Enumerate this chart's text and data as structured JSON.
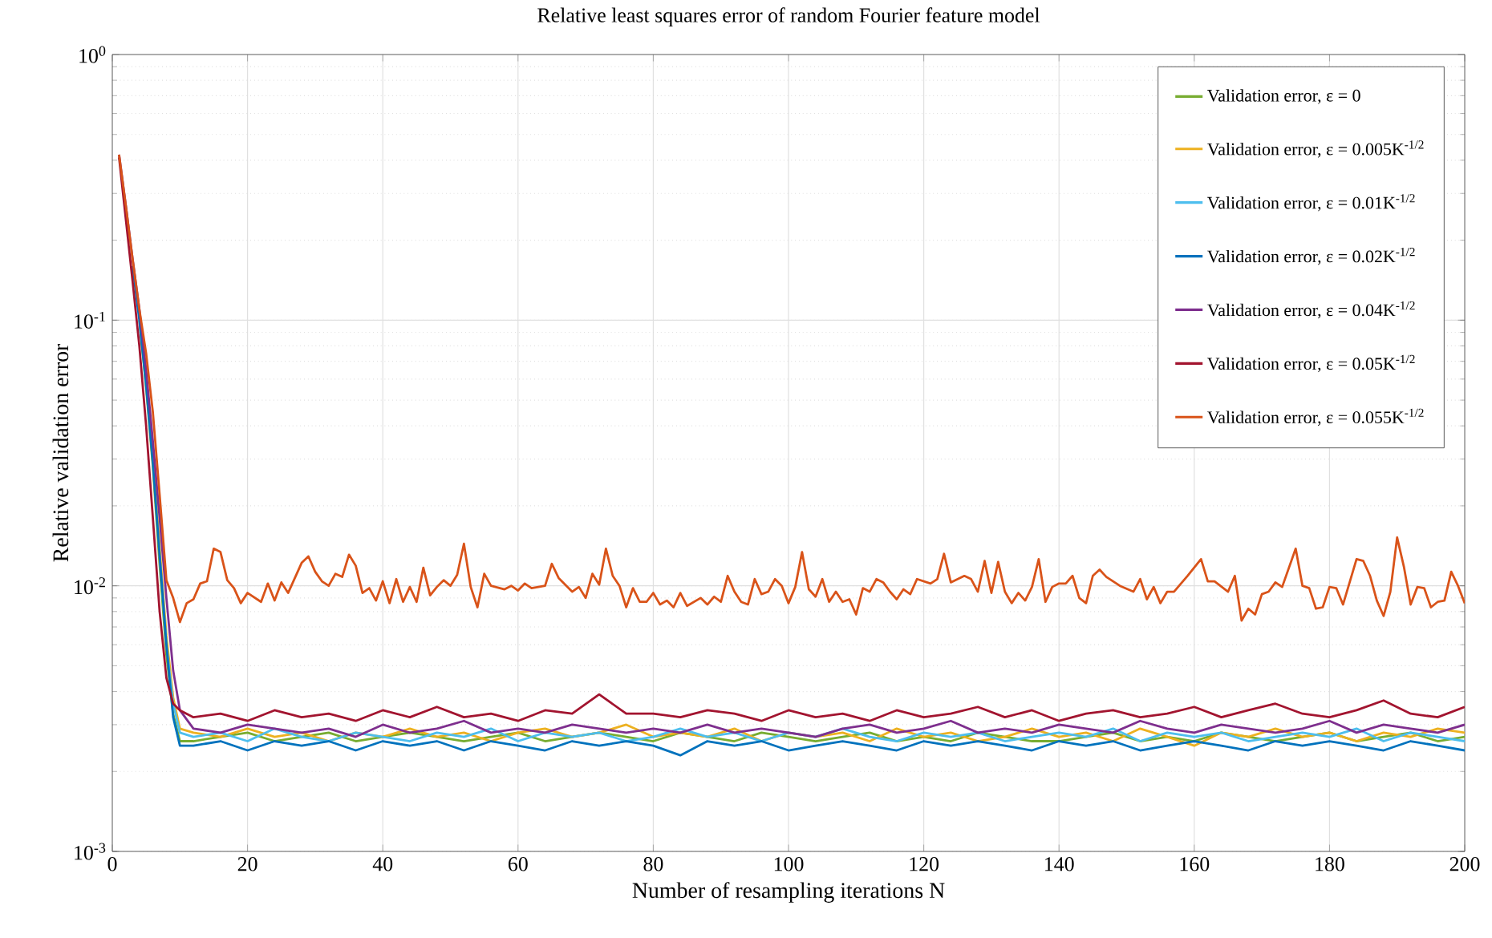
{
  "chart_data": {
    "type": "line",
    "title": "Relative least squares error of random Fourier feature model",
    "xlabel": "Number of resampling iterations N",
    "ylabel": "Relative validation error",
    "log": "y",
    "grid": true,
    "legend": "top right",
    "marker": "none",
    "line_style": "solid",
    "xlim": [
      0,
      200
    ],
    "xticks": [
      0,
      20,
      40,
      60,
      80,
      100,
      120,
      140,
      160,
      180,
      200
    ],
    "ylim": [
      0.001,
      1
    ],
    "yticks": [
      {
        "value": 0.001,
        "label": "10$^{-3}$"
      },
      {
        "value": 0.01,
        "label": "10$^{-2}$"
      },
      {
        "value": 0.1,
        "label": "10$^{-1}$"
      },
      {
        "value": 1,
        "label": "10$^{0}$"
      }
    ],
    "x": [
      1,
      2,
      3,
      4,
      5,
      6,
      7,
      8,
      9,
      10,
      12,
      16,
      20,
      24,
      28,
      32,
      36,
      40,
      44,
      48,
      52,
      56,
      60,
      64,
      68,
      72,
      76,
      80,
      84,
      88,
      92,
      96,
      100,
      104,
      108,
      112,
      116,
      120,
      124,
      128,
      132,
      136,
      140,
      144,
      148,
      152,
      156,
      160,
      164,
      168,
      172,
      176,
      180,
      184,
      188,
      192,
      196,
      200
    ],
    "series": [
      {
        "name": "Validation error, ε = 0",
        "color": "#77ac30",
        "values": [
          null,
          null,
          null,
          0.1,
          0.056,
          0.028,
          0.012,
          0.0055,
          0.0033,
          0.0026,
          0.0026,
          0.0027,
          0.0028,
          0.0026,
          0.0027,
          0.0028,
          0.0026,
          0.0027,
          0.0028,
          0.0027,
          0.0026,
          0.0027,
          0.0028,
          0.0026,
          0.0027,
          0.0028,
          0.0027,
          0.0026,
          0.0028,
          0.0027,
          0.0026,
          0.0028,
          0.0027,
          0.0026,
          0.0027,
          0.0028,
          0.0026,
          0.0027,
          0.0026,
          0.0028,
          0.0027,
          0.0026,
          0.0026,
          0.0027,
          0.0028,
          0.0026,
          0.0027,
          0.0026,
          0.0028,
          0.0027,
          0.0026,
          0.0027,
          0.0028,
          0.0026,
          0.0027,
          0.0028,
          0.0026,
          0.0027
        ]
      },
      {
        "name": "Validation error, ε = 0.005K$^{-1/2}$",
        "color": "#edb120",
        "values": [
          null,
          null,
          null,
          null,
          null,
          0.03,
          0.014,
          0.0065,
          0.0038,
          0.0029,
          0.0028,
          0.0027,
          0.0029,
          0.0027,
          0.0028,
          0.0026,
          0.0028,
          0.0027,
          0.0029,
          0.0027,
          0.0028,
          0.0026,
          0.0028,
          0.0029,
          0.0027,
          0.0028,
          0.003,
          0.0027,
          0.0028,
          0.0027,
          0.0029,
          0.0026,
          0.0028,
          0.0027,
          0.0028,
          0.0026,
          0.0029,
          0.0027,
          0.0028,
          0.0026,
          0.0027,
          0.0029,
          0.0027,
          0.0028,
          0.0026,
          0.0029,
          0.0027,
          0.0025,
          0.0028,
          0.0027,
          0.0029,
          0.0027,
          0.0028,
          0.0026,
          0.0028,
          0.0027,
          0.0029,
          0.0028
        ]
      },
      {
        "name": "Validation error, ε = 0.01K$^{-1/2}$",
        "color": "#4dbeee",
        "values": [
          null,
          null,
          null,
          null,
          null,
          null,
          0.013,
          0.006,
          0.0036,
          0.0028,
          0.0027,
          0.0028,
          0.0026,
          0.0029,
          0.0027,
          0.0026,
          0.0028,
          0.0027,
          0.0026,
          0.0028,
          0.0027,
          0.0029,
          0.0026,
          0.0028,
          0.0027,
          0.0028,
          0.0026,
          0.0027,
          0.0029,
          0.0027,
          0.0028,
          0.0026,
          0.0028,
          0.0027,
          0.0029,
          0.0027,
          0.0026,
          0.0028,
          0.0027,
          0.0028,
          0.0026,
          0.0027,
          0.0028,
          0.0027,
          0.0029,
          0.0026,
          0.0028,
          0.0027,
          0.0028,
          0.0026,
          0.0027,
          0.0028,
          0.0027,
          0.0029,
          0.0026,
          0.0028,
          0.0027,
          0.0026
        ]
      },
      {
        "name": "Validation error, ε = 0.02K$^{-1/2}$",
        "color": "#0072bd",
        "values": [
          null,
          null,
          0.16,
          0.1,
          0.057,
          0.029,
          0.013,
          0.006,
          0.0032,
          0.0025,
          0.0025,
          0.0026,
          0.0024,
          0.0026,
          0.0025,
          0.0026,
          0.0024,
          0.0026,
          0.0025,
          0.0026,
          0.0024,
          0.0026,
          0.0025,
          0.0024,
          0.0026,
          0.0025,
          0.0026,
          0.0025,
          0.0023,
          0.0026,
          0.0025,
          0.0026,
          0.0024,
          0.0025,
          0.0026,
          0.0025,
          0.0024,
          0.0026,
          0.0025,
          0.0026,
          0.0025,
          0.0024,
          0.0026,
          0.0025,
          0.0026,
          0.0024,
          0.0025,
          0.0026,
          0.0025,
          0.0024,
          0.0026,
          0.0025,
          0.0026,
          0.0025,
          0.0024,
          0.0026,
          0.0025,
          0.0024
        ]
      },
      {
        "name": "Validation error, ε = 0.04K$^{-1/2}$",
        "color": "#7e2f8e",
        "values": [
          0.42,
          0.27,
          0.17,
          0.11,
          0.065,
          0.035,
          0.018,
          0.009,
          0.0048,
          0.0034,
          0.0029,
          0.0028,
          0.003,
          0.0029,
          0.0028,
          0.0029,
          0.0027,
          0.003,
          0.0028,
          0.0029,
          0.0031,
          0.0028,
          0.0029,
          0.0028,
          0.003,
          0.0029,
          0.0028,
          0.0029,
          0.0028,
          0.003,
          0.0028,
          0.0029,
          0.0028,
          0.0027,
          0.0029,
          0.003,
          0.0028,
          0.0029,
          0.0031,
          0.0028,
          0.0029,
          0.0028,
          0.003,
          0.0029,
          0.0028,
          0.0031,
          0.0029,
          0.0028,
          0.003,
          0.0029,
          0.0028,
          0.0029,
          0.0031,
          0.0028,
          0.003,
          0.0029,
          0.0028,
          0.003
        ]
      },
      {
        "name": "Validation error, ε = 0.05K$^{-1/2}$",
        "color": "#a2142f",
        "values": [
          0.41,
          0.24,
          0.14,
          0.08,
          0.04,
          0.018,
          0.008,
          0.0045,
          0.0036,
          0.0034,
          0.0032,
          0.0033,
          0.0031,
          0.0034,
          0.0032,
          0.0033,
          0.0031,
          0.0034,
          0.0032,
          0.0035,
          0.0032,
          0.0033,
          0.0031,
          0.0034,
          0.0033,
          0.0039,
          0.0033,
          0.0033,
          0.0032,
          0.0034,
          0.0033,
          0.0031,
          0.0034,
          0.0032,
          0.0033,
          0.0031,
          0.0034,
          0.0032,
          0.0033,
          0.0035,
          0.0032,
          0.0034,
          0.0031,
          0.0033,
          0.0034,
          0.0032,
          0.0033,
          0.0035,
          0.0032,
          0.0034,
          0.0036,
          0.0033,
          0.0032,
          0.0034,
          0.0037,
          0.0033,
          0.0032,
          0.0035
        ]
      },
      {
        "name": "Validation error, ε = 0.055K$^{-1/2}$",
        "color": "#d95319",
        "x": [
          1,
          2,
          3,
          4,
          5,
          6,
          7,
          8,
          9,
          10,
          11,
          12,
          13,
          14,
          15,
          16,
          17,
          18,
          19,
          20,
          22,
          23,
          24,
          25,
          26,
          28,
          29,
          30,
          31,
          32,
          33,
          34,
          35,
          36,
          37,
          38,
          39,
          40,
          41,
          42,
          43,
          44,
          45,
          46,
          47,
          48,
          49,
          50,
          51,
          52,
          53,
          54,
          55,
          56,
          58,
          59,
          60,
          61,
          62,
          64,
          65,
          66,
          68,
          69,
          70,
          71,
          72,
          73,
          74,
          75,
          76,
          77,
          78,
          79,
          80,
          81,
          82,
          83,
          84,
          85,
          87,
          88,
          89,
          90,
          91,
          92,
          93,
          94,
          95,
          96,
          97,
          98,
          99,
          100,
          101,
          102,
          103,
          104,
          105,
          106,
          107,
          108,
          109,
          110,
          111,
          112,
          113,
          114,
          115,
          116,
          117,
          118,
          119,
          121,
          122,
          123,
          124,
          126,
          127,
          128,
          129,
          130,
          131,
          132,
          133,
          134,
          135,
          136,
          137,
          138,
          139,
          140,
          141,
          142,
          143,
          144,
          145,
          146,
          147,
          149,
          151,
          152,
          153,
          154,
          155,
          156,
          157,
          159,
          161,
          162,
          163,
          165,
          166,
          167,
          168,
          169,
          170,
          171,
          172,
          173,
          175,
          176,
          177,
          178,
          179,
          180,
          181,
          182,
          184,
          185,
          186,
          187,
          188,
          189,
          190,
          191,
          192,
          193,
          194,
          195,
          196,
          197,
          198,
          199,
          200
        ],
        "values": [
          0.42,
          0.27,
          0.17,
          0.11,
          0.075,
          0.045,
          0.022,
          0.0105,
          0.009,
          0.0073,
          0.0086,
          0.0089,
          0.0102,
          0.0104,
          0.0138,
          0.0134,
          0.0105,
          0.0098,
          0.0086,
          0.0094,
          0.0087,
          0.0102,
          0.0088,
          0.0103,
          0.0094,
          0.0122,
          0.0129,
          0.0113,
          0.0104,
          0.01,
          0.0111,
          0.0108,
          0.0131,
          0.0119,
          0.0094,
          0.0098,
          0.0088,
          0.0104,
          0.0086,
          0.0106,
          0.0087,
          0.0099,
          0.0087,
          0.0117,
          0.0092,
          0.0099,
          0.0105,
          0.01,
          0.011,
          0.0144,
          0.0099,
          0.0083,
          0.0111,
          0.01,
          0.0097,
          0.01,
          0.0096,
          0.0102,
          0.0098,
          0.01,
          0.0121,
          0.0107,
          0.0095,
          0.0099,
          0.009,
          0.0111,
          0.0101,
          0.0138,
          0.0109,
          0.01,
          0.0083,
          0.0098,
          0.0087,
          0.0087,
          0.0094,
          0.0085,
          0.0088,
          0.0083,
          0.0094,
          0.0084,
          0.009,
          0.0085,
          0.0091,
          0.0087,
          0.0109,
          0.0095,
          0.0087,
          0.0085,
          0.0106,
          0.0093,
          0.0095,
          0.0106,
          0.01,
          0.0086,
          0.0099,
          0.0134,
          0.0097,
          0.0091,
          0.0106,
          0.0087,
          0.0095,
          0.0087,
          0.0089,
          0.0078,
          0.0098,
          0.0095,
          0.0106,
          0.0103,
          0.0095,
          0.0089,
          0.0097,
          0.0093,
          0.0106,
          0.0102,
          0.0106,
          0.0132,
          0.0103,
          0.0109,
          0.0106,
          0.0095,
          0.0124,
          0.0094,
          0.0123,
          0.0095,
          0.0086,
          0.0094,
          0.0088,
          0.0099,
          0.0126,
          0.0087,
          0.0099,
          0.0102,
          0.0102,
          0.0109,
          0.009,
          0.0086,
          0.0109,
          0.0115,
          0.0108,
          0.01,
          0.0095,
          0.0106,
          0.0089,
          0.0099,
          0.0086,
          0.0095,
          0.0095,
          0.0109,
          0.0126,
          0.0104,
          0.0104,
          0.0095,
          0.0109,
          0.0074,
          0.0082,
          0.0078,
          0.0093,
          0.0095,
          0.0103,
          0.0099,
          0.0138,
          0.01,
          0.0098,
          0.0082,
          0.0083,
          0.0099,
          0.0098,
          0.0085,
          0.0126,
          0.0124,
          0.0109,
          0.0088,
          0.0077,
          0.0095,
          0.0152,
          0.0118,
          0.0085,
          0.0099,
          0.0098,
          0.0083,
          0.0087,
          0.0088,
          0.0113,
          0.01,
          0.0086
        ]
      }
    ]
  }
}
